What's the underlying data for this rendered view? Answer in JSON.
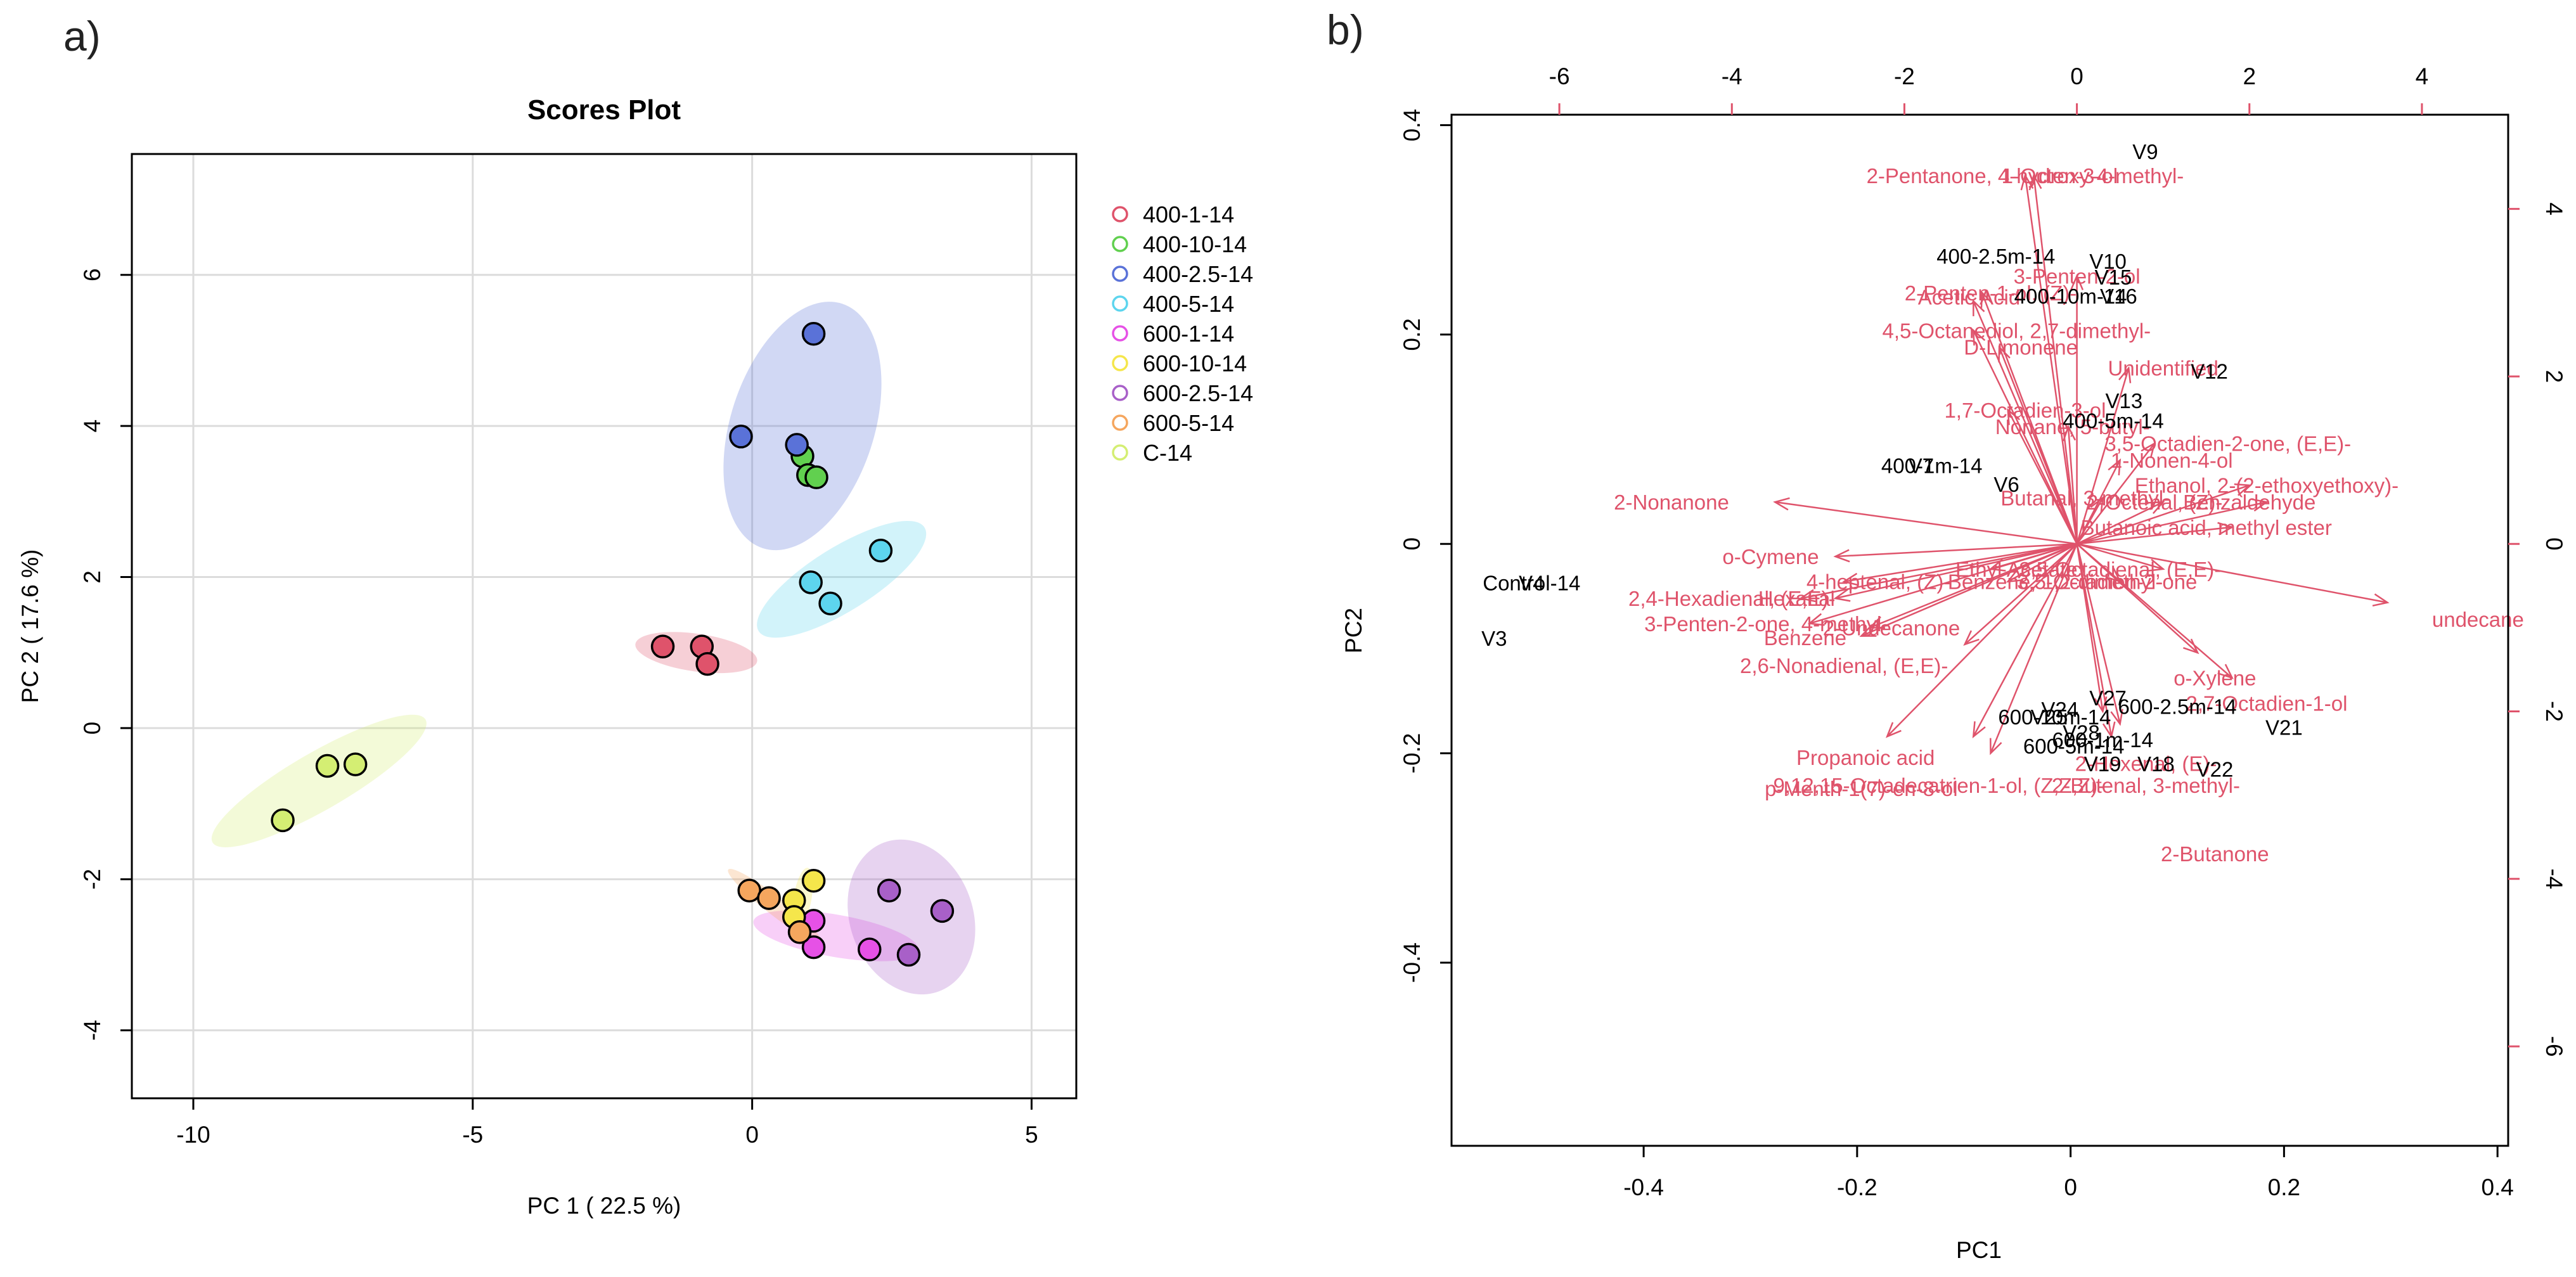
{
  "chart_data": [
    {
      "type": "scatter",
      "panel_label": "a)",
      "title": "Scores Plot",
      "xlabel": "PC 1 ( 22.5 %)",
      "ylabel": "PC 2 ( 17.6 %)",
      "xlim": [
        -11.1,
        5.8
      ],
      "ylim": [
        -4.9,
        7.6
      ],
      "xticks": [
        -10,
        -5,
        0,
        5
      ],
      "yticks": [
        -4,
        -2,
        0,
        2,
        4,
        6
      ],
      "grid": true,
      "legend_position": "right",
      "series": [
        {
          "name": "400-1-14",
          "color": "#DF536B",
          "points": [
            [
              -1.6,
              1.08
            ],
            [
              -0.9,
              1.08
            ],
            [
              -0.8,
              0.85
            ]
          ],
          "ellipse": {
            "cx": -1.0,
            "cy": 1.0,
            "rx": 1.1,
            "ry": 0.25,
            "angle": -8
          }
        },
        {
          "name": "400-10-14",
          "color": "#61D04F",
          "points": [
            [
              0.9,
              3.6
            ],
            [
              1.0,
              3.35
            ],
            [
              1.15,
              3.32
            ]
          ],
          "ellipse": null
        },
        {
          "name": "400-2.5-14",
          "color": "#5A72D8",
          "points": [
            [
              -0.2,
              3.86
            ],
            [
              0.8,
              3.75
            ],
            [
              1.1,
              5.22
            ]
          ],
          "ellipse": {
            "cx": 0.9,
            "cy": 4.0,
            "rx": 2.3,
            "ry": 0.95,
            "angle": 72
          }
        },
        {
          "name": "400-5-14",
          "color": "#5DD5EE",
          "points": [
            [
              1.05,
              1.93
            ],
            [
              1.4,
              1.65
            ],
            [
              2.3,
              2.35
            ]
          ],
          "ellipse": {
            "cx": 1.6,
            "cy": 1.97,
            "rx": 1.75,
            "ry": 0.42,
            "angle": 32
          }
        },
        {
          "name": "600-1-14",
          "color": "#E651E6",
          "points": [
            [
              1.1,
              -2.9
            ],
            [
              2.1,
              -2.93
            ],
            [
              1.1,
              -2.55
            ]
          ],
          "ellipse": {
            "cx": 1.5,
            "cy": -2.75,
            "rx": 1.5,
            "ry": 0.28,
            "angle": -10
          }
        },
        {
          "name": "600-10-14",
          "color": "#F5E64B",
          "points": [
            [
              1.1,
              -2.02
            ],
            [
              0.75,
              -2.28
            ],
            [
              0.75,
              -2.5
            ]
          ],
          "ellipse": {
            "cx": 0.9,
            "cy": -2.25,
            "rx": 0.55,
            "ry": 0.12,
            "angle": 80
          }
        },
        {
          "name": "600-2.5-14",
          "color": "#A860C8",
          "points": [
            [
              2.45,
              -2.15
            ],
            [
              3.4,
              -2.42
            ],
            [
              2.8,
              -3.0
            ]
          ],
          "ellipse": {
            "cx": 2.85,
            "cy": -2.5,
            "rx": 1.1,
            "ry": 1.05,
            "angle": 20
          }
        },
        {
          "name": "600-5-14",
          "color": "#F5A65E",
          "points": [
            [
              -0.05,
              -2.15
            ],
            [
              0.3,
              -2.25
            ],
            [
              0.85,
              -2.7
            ]
          ],
          "ellipse": {
            "cx": 0.4,
            "cy": -2.35,
            "rx": 1.05,
            "ry": 0.12,
            "angle": -38
          }
        },
        {
          "name": "C-14",
          "color": "#D4EE73",
          "points": [
            [
              -7.6,
              -0.5
            ],
            [
              -7.1,
              -0.48
            ],
            [
              -8.4,
              -1.22
            ]
          ],
          "ellipse": {
            "cx": -7.75,
            "cy": -0.7,
            "rx": 2.2,
            "ry": 0.38,
            "angle": 30
          }
        }
      ]
    },
    {
      "type": "scatter",
      "subtype": "biplot",
      "panel_label": "b)",
      "xlabel": "PC1",
      "ylabel": "PC2",
      "xlim": [
        -0.58,
        0.41
      ],
      "ylim": [
        -0.575,
        0.41
      ],
      "xticks": [
        -0.4,
        -0.2,
        0.0,
        0.2,
        0.4
      ],
      "yticks": [
        -0.4,
        -0.2,
        0.0,
        0.2,
        0.4
      ],
      "top_ticks": [
        -6,
        -4,
        -2,
        0,
        2,
        4
      ],
      "right_ticks": [
        -6,
        -4,
        -2,
        0,
        2,
        4
      ],
      "loading_scale": [
        -7.25,
        5.0
      ],
      "loading_color": "#DF536B",
      "score_color": "#000000",
      "scores": [
        {
          "label": "V9",
          "x": 0.07,
          "y": 0.375
        },
        {
          "label": "400-2.5m-14",
          "x": -0.07,
          "y": 0.275
        },
        {
          "label": "V10",
          "x": 0.035,
          "y": 0.27
        },
        {
          "label": "V15",
          "x": 0.04,
          "y": 0.255
        },
        {
          "label": "V16",
          "x": 0.045,
          "y": 0.237
        },
        {
          "label": "400-10m-14",
          "x": 0.0,
          "y": 0.237
        },
        {
          "label": "V12",
          "x": 0.13,
          "y": 0.165
        },
        {
          "label": "V13",
          "x": 0.05,
          "y": 0.137
        },
        {
          "label": "400-5m-14",
          "x": 0.04,
          "y": 0.118
        },
        {
          "label": "V7",
          "x": -0.14,
          "y": 0.075
        },
        {
          "label": "400-1m-14",
          "x": -0.13,
          "y": 0.075
        },
        {
          "label": "V6",
          "x": -0.06,
          "y": 0.057
        },
        {
          "label": "V4",
          "x": -0.505,
          "y": -0.037
        },
        {
          "label": "Control-14",
          "x": -0.505,
          "y": -0.037
        },
        {
          "label": "V3",
          "x": -0.54,
          "y": -0.09
        },
        {
          "label": "V24",
          "x": -0.01,
          "y": -0.158
        },
        {
          "label": "V27",
          "x": 0.035,
          "y": -0.147
        },
        {
          "label": "600-10m-14",
          "x": -0.015,
          "y": -0.165
        },
        {
          "label": "600-2.5m-14",
          "x": 0.1,
          "y": -0.155
        },
        {
          "label": "V25",
          "x": -0.02,
          "y": -0.165
        },
        {
          "label": "V28",
          "x": 0.01,
          "y": -0.18
        },
        {
          "label": "600-1m-14",
          "x": 0.03,
          "y": -0.187
        },
        {
          "label": "600-5m-14",
          "x": 0.003,
          "y": -0.193
        },
        {
          "label": "V21",
          "x": 0.2,
          "y": -0.175
        },
        {
          "label": "V19",
          "x": 0.03,
          "y": -0.21
        },
        {
          "label": "V18",
          "x": 0.08,
          "y": -0.21
        },
        {
          "label": "V22",
          "x": 0.135,
          "y": -0.215
        }
      ],
      "loadings": [
        {
          "label": "2-Pentanone, 4-hydroxy-4-methyl-",
          "x": -0.6,
          "y": 4.4,
          "lx": -0.6,
          "ly": 4.4
        },
        {
          "label": "1-Octen-3-ol",
          "x": -0.5,
          "y": 4.4,
          "lx": -0.2,
          "ly": 4.4
        },
        {
          "label": "3-Penten-2-ol",
          "x": 0.0,
          "y": 3.2,
          "lx": 0.0,
          "ly": 3.2
        },
        {
          "label": "2-Penten-1-ol, (Z)-",
          "x": -1.1,
          "y": 3.0,
          "lx": -1.0,
          "ly": 3.0
        },
        {
          "label": "Acetic Acid",
          "x": -1.2,
          "y": 2.9,
          "lx": -1.25,
          "ly": 2.95
        },
        {
          "label": "4,5-Octanediol, 2,7-dimethyl-",
          "x": -1.2,
          "y": 2.55,
          "lx": -0.7,
          "ly": 2.55
        },
        {
          "label": "D-Limonene",
          "x": -0.9,
          "y": 2.35,
          "lx": -0.65,
          "ly": 2.35
        },
        {
          "label": "Unidentified",
          "x": 0.6,
          "y": 2.1,
          "lx": 1.0,
          "ly": 2.1
        },
        {
          "label": "1,7-Octadien-3-ol",
          "x": -0.8,
          "y": 1.6,
          "lx": -0.6,
          "ly": 1.6
        },
        {
          "label": "Nonane, 5-butyl-",
          "x": -0.1,
          "y": 1.4,
          "lx": -0.05,
          "ly": 1.4
        },
        {
          "label": "3,5-Octadien-2-one, (E,E)-",
          "x": 0.9,
          "y": 1.2,
          "lx": 1.75,
          "ly": 1.2
        },
        {
          "label": "1-Nonen-4-ol",
          "x": 0.5,
          "y": 1.0,
          "lx": 1.1,
          "ly": 1.0
        },
        {
          "label": "Ethanol, 2-(2-ethoxyethoxy)-",
          "x": 2.0,
          "y": 0.7,
          "lx": 2.2,
          "ly": 0.7
        },
        {
          "label": "Butanal, 3-methyl-",
          "x": 0.3,
          "y": 0.55,
          "lx": 0.1,
          "ly": 0.55
        },
        {
          "label": "2-Nonanone",
          "x": -3.5,
          "y": 0.5,
          "lx": -4.7,
          "ly": 0.5
        },
        {
          "label": "Benzaldehyde",
          "x": 2.2,
          "y": 0.5,
          "lx": 2.0,
          "ly": 0.5
        },
        {
          "label": "2-Octenal, (Z)-",
          "x": 1.0,
          "y": 0.5,
          "lx": 0.9,
          "ly": 0.5
        },
        {
          "label": "Butanoic acid, methyl ester",
          "x": 1.8,
          "y": 0.2,
          "lx": 1.5,
          "ly": 0.2
        },
        {
          "label": "o-Cymene",
          "x": -2.8,
          "y": -0.15,
          "lx": -3.55,
          "ly": -0.15
        },
        {
          "label": "Ethyl Acetate",
          "x": -1.0,
          "y": -0.3,
          "lx": -0.7,
          "ly": -0.3
        },
        {
          "label": "3,5-Octadienal, (E,E)-",
          "x": 1.0,
          "y": -0.3,
          "lx": 0.5,
          "ly": -0.3
        },
        {
          "label": "4-heptenal, (Z)-",
          "x": -2.7,
          "y": -0.45,
          "lx": -2.3,
          "ly": -0.45
        },
        {
          "label": "Benzene, 1,2-dimethyl-",
          "x": -0.8,
          "y": -0.45,
          "lx": -0.25,
          "ly": -0.45
        },
        {
          "label": "3,5-Octadien-2-one",
          "x": 0.5,
          "y": -0.45,
          "lx": 0.35,
          "ly": -0.45
        },
        {
          "label": "2,4-Hexadienal, (E,E)-",
          "x": -3.2,
          "y": -0.65,
          "lx": -4.0,
          "ly": -0.65
        },
        {
          "label": "Hexanal",
          "x": -2.8,
          "y": -0.65,
          "lx": -3.25,
          "ly": -0.65
        },
        {
          "label": "undecane",
          "x": 3.6,
          "y": -0.7,
          "lx": 4.65,
          "ly": -0.9
        },
        {
          "label": "3-Penten-2-one, 4-methyl-",
          "x": -3.1,
          "y": -0.95,
          "lx": -3.6,
          "ly": -0.95
        },
        {
          "label": "2-Undecanone",
          "x": -2.4,
          "y": -1.0,
          "lx": -2.15,
          "ly": -1.0
        },
        {
          "label": "Benzene",
          "x": -2.5,
          "y": -1.1,
          "lx": -3.15,
          "ly": -1.12
        },
        {
          "label": "2,6-Nonadienal, (E,E)-",
          "x": -1.3,
          "y": -1.2,
          "lx": -2.7,
          "ly": -1.45
        },
        {
          "label": "o-Xylene",
          "x": 1.4,
          "y": -1.3,
          "lx": 1.6,
          "ly": -1.6
        },
        {
          "label": "2,7-Octadien-1-ol",
          "x": 1.8,
          "y": -1.6,
          "lx": 2.2,
          "ly": -1.9
        },
        {
          "label": "Propanoic acid",
          "x": -2.2,
          "y": -2.3,
          "lx": -2.45,
          "ly": -2.55
        },
        {
          "label": "2-Hexenal, (E)-",
          "x": 0.5,
          "y": -2.15,
          "lx": 0.8,
          "ly": -2.62
        },
        {
          "label": "9,12,15-Octadecatrien-1-ol, (Z,Z,Z)-",
          "x": -1.2,
          "y": -2.3,
          "lx": -1.6,
          "ly": -2.88
        },
        {
          "label": "p-Menth-1(7)-en-8-ol",
          "x": -1.0,
          "y": -2.5,
          "lx": -2.5,
          "ly": -2.92
        },
        {
          "label": "2-Butenal, 3-methyl-",
          "x": 0.4,
          "y": -2.3,
          "lx": 0.8,
          "ly": -2.88
        },
        {
          "label": "2-Butanone",
          "x": 0.3,
          "y": -2.0,
          "lx": 1.6,
          "ly": -3.7
        }
      ]
    }
  ]
}
